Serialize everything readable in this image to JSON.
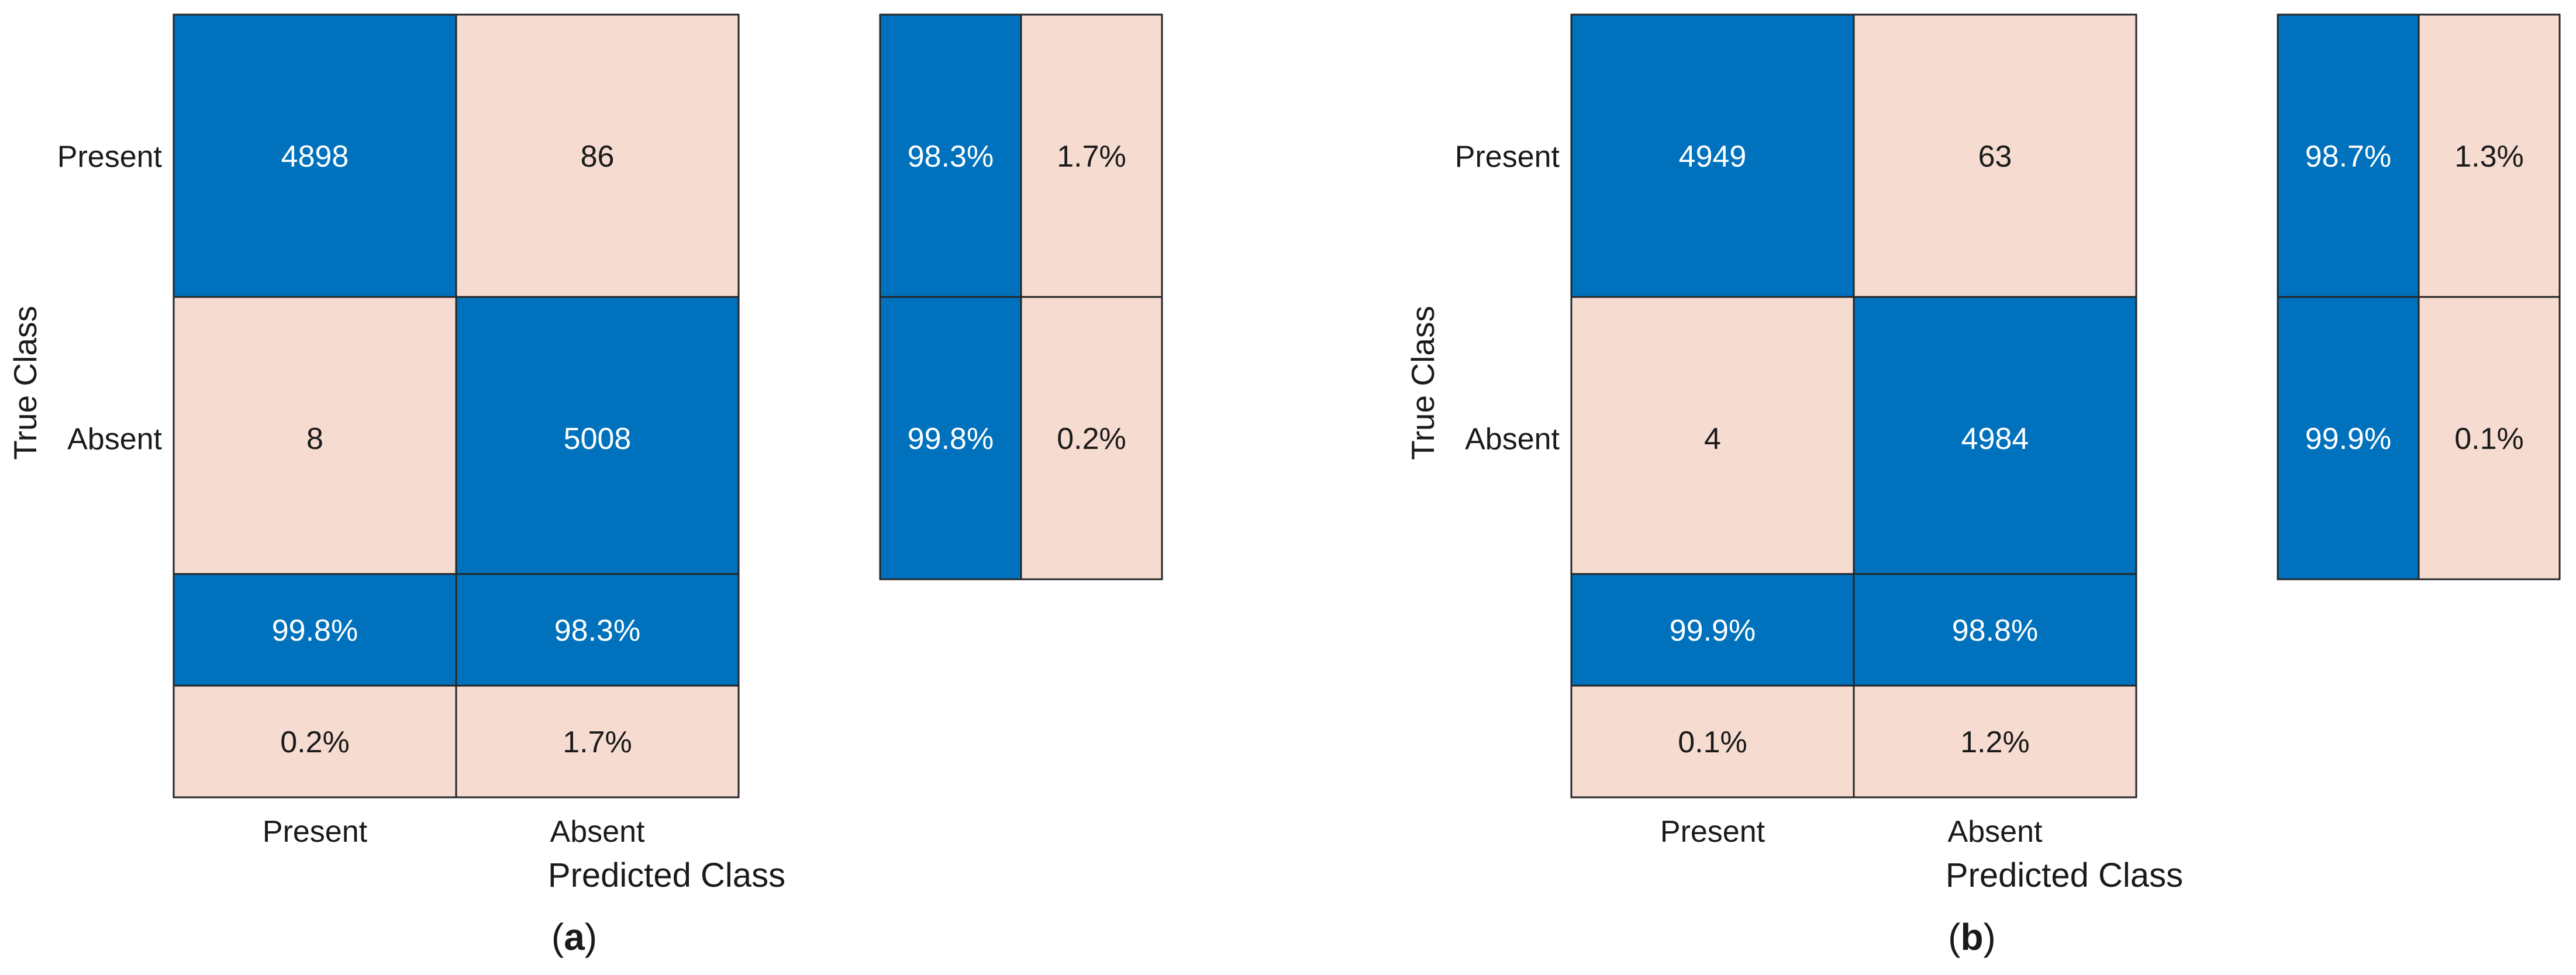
{
  "colors": {
    "high": "#0072BD",
    "low": "#F6DBD0",
    "border": "#262626",
    "text_on_high": "#ffffff",
    "text_on_low": "#1a1a1a",
    "label": "#1a1a1a"
  },
  "chart_data": [
    {
      "type": "heatmap",
      "caption_prefix": "(",
      "caption_letter": "a",
      "caption_suffix": ")",
      "ylabel": "True Class",
      "xlabel": "Predicted Class",
      "true_classes": [
        "Present",
        "Absent"
      ],
      "predicted_classes": [
        "Present",
        "Absent"
      ],
      "matrix": [
        [
          4898,
          86
        ],
        [
          8,
          5008
        ]
      ],
      "row_summary": [
        [
          "98.3%",
          "1.7%"
        ],
        [
          "99.8%",
          "0.2%"
        ]
      ],
      "column_summary": [
        [
          "99.8%",
          "98.3%"
        ],
        [
          "0.2%",
          "1.7%"
        ]
      ]
    },
    {
      "type": "heatmap",
      "caption_prefix": "(",
      "caption_letter": "b",
      "caption_suffix": ")",
      "ylabel": "True Class",
      "xlabel": "Predicted Class",
      "true_classes": [
        "Present",
        "Absent"
      ],
      "predicted_classes": [
        "Present",
        "Absent"
      ],
      "matrix": [
        [
          4949,
          63
        ],
        [
          4,
          4984
        ]
      ],
      "row_summary": [
        [
          "98.7%",
          "1.3%"
        ],
        [
          "99.9%",
          "0.1%"
        ]
      ],
      "column_summary": [
        [
          "99.9%",
          "98.8%"
        ],
        [
          "0.1%",
          "1.2%"
        ]
      ]
    }
  ]
}
